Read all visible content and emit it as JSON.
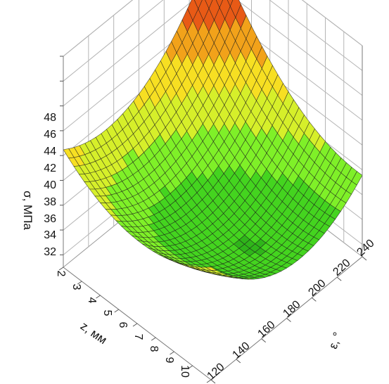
{
  "chart_data": {
    "type": "surface3d",
    "title": "",
    "zlabel": "σ, МПа",
    "xlabel": "z, мм",
    "ylabel": "ε, °",
    "x_ticks": [
      "2",
      "3",
      "4",
      "5",
      "6",
      "7",
      "8",
      "9",
      "10"
    ],
    "y_ticks": [
      "120",
      "140",
      "160",
      "180",
      "200",
      "220",
      "240"
    ],
    "z_ticks": [
      "32",
      "34",
      "36",
      "38",
      "40",
      "42",
      "44",
      "46",
      "48"
    ],
    "xlim": [
      2,
      10
    ],
    "ylim": [
      120,
      240
    ],
    "zlim": [
      31,
      48
    ],
    "grid": true,
    "colormap": [
      "#1e8a1e",
      "#2fb51a",
      "#44d41f",
      "#7ff028",
      "#d6ef2a",
      "#f7df22",
      "#f2a21a",
      "#e85a16",
      "#c81212",
      "#7e0707"
    ],
    "mesh_color": "#1a1a1a"
  }
}
